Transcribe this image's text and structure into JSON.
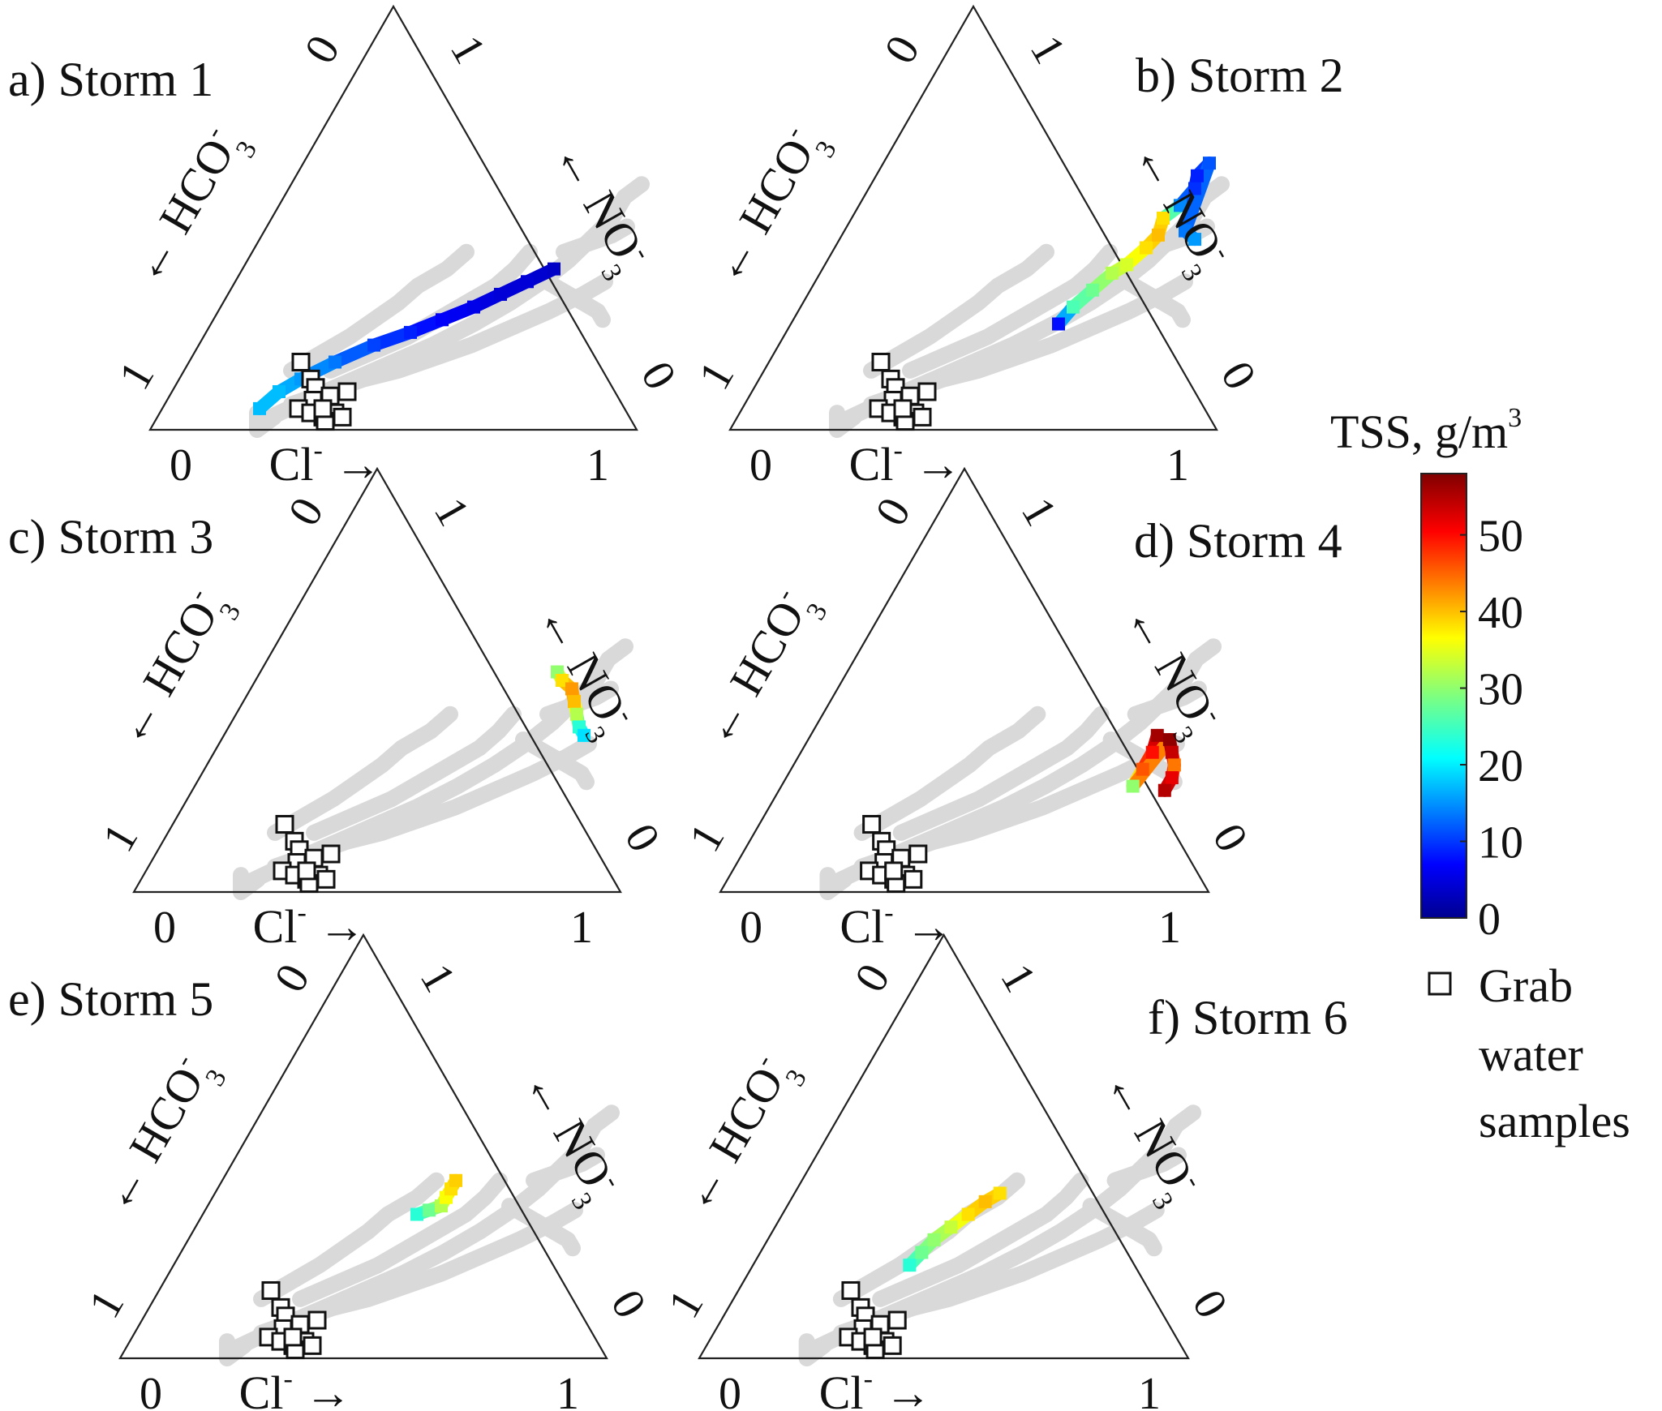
{
  "chart_data": {
    "type": "scatter",
    "subtype": "ternary",
    "axes": {
      "bottom": {
        "label_main": "Cl",
        "label_sup": "-",
        "arrow": "→",
        "ticks": [
          "0",
          "1"
        ]
      },
      "left": {
        "label_main": "HCO",
        "label_sub": "3",
        "label_sup": "-",
        "arrow": "←",
        "ticks": [
          "0",
          "1"
        ]
      },
      "right": {
        "label_main": "NO",
        "label_sub": "3",
        "label_sup": "-",
        "arrow": "←",
        "ticks": [
          "1",
          "0"
        ]
      }
    },
    "colorbar": {
      "title_main": "TSS, g/m",
      "title_sup": "3",
      "ticks": [
        "0",
        "10",
        "20",
        "30",
        "40",
        "50"
      ],
      "range": [
        0,
        58
      ],
      "colormap": "jet"
    },
    "legend": {
      "grab_label_lines": [
        "Grab",
        "water",
        "samples"
      ]
    },
    "background_color": "#d9d9d9",
    "grab_samples": [
      {
        "cl": 0.23,
        "no3": 0.16
      },
      {
        "cl": 0.27,
        "no3": 0.12
      },
      {
        "cl": 0.29,
        "no3": 0.1
      },
      {
        "cl": 0.3,
        "no3": 0.07
      },
      {
        "cl": 0.33,
        "no3": 0.08
      },
      {
        "cl": 0.36,
        "no3": 0.09
      },
      {
        "cl": 0.28,
        "no3": 0.05
      },
      {
        "cl": 0.31,
        "no3": 0.04
      },
      {
        "cl": 0.34,
        "no3": 0.03
      },
      {
        "cl": 0.36,
        "no3": 0.04
      },
      {
        "cl": 0.35,
        "no3": 0.02
      },
      {
        "cl": 0.38,
        "no3": 0.03
      },
      {
        "cl": 0.33,
        "no3": 0.05
      }
    ],
    "panels": [
      {
        "label": "a) Storm 1",
        "series": [
          {
            "cl": 0.2,
            "no3": 0.05,
            "tss": 18
          },
          {
            "cl": 0.22,
            "no3": 0.09,
            "tss": 18
          },
          {
            "cl": 0.25,
            "no3": 0.12,
            "tss": 16
          },
          {
            "cl": 0.3,
            "no3": 0.16,
            "tss": 14
          },
          {
            "cl": 0.36,
            "no3": 0.2,
            "tss": 11
          },
          {
            "cl": 0.42,
            "no3": 0.23,
            "tss": 9
          },
          {
            "cl": 0.47,
            "no3": 0.26,
            "tss": 7
          },
          {
            "cl": 0.52,
            "no3": 0.29,
            "tss": 6
          },
          {
            "cl": 0.56,
            "no3": 0.32,
            "tss": 5
          },
          {
            "cl": 0.6,
            "no3": 0.35,
            "tss": 5
          },
          {
            "cl": 0.64,
            "no3": 0.38,
            "tss": 4
          }
        ]
      },
      {
        "label": "b) Storm 2",
        "series": [
          {
            "cl": 0.55,
            "no3": 0.25,
            "tss": 8
          },
          {
            "cl": 0.56,
            "no3": 0.29,
            "tss": 26
          },
          {
            "cl": 0.58,
            "no3": 0.33,
            "tss": 28
          },
          {
            "cl": 0.6,
            "no3": 0.37,
            "tss": 32
          },
          {
            "cl": 0.62,
            "no3": 0.39,
            "tss": 34
          },
          {
            "cl": 0.64,
            "no3": 0.43,
            "tss": 38
          },
          {
            "cl": 0.65,
            "no3": 0.46,
            "tss": 40
          },
          {
            "cl": 0.64,
            "no3": 0.5,
            "tss": 38
          },
          {
            "cl": 0.66,
            "no3": 0.53,
            "tss": 15
          },
          {
            "cl": 0.67,
            "no3": 0.57,
            "tss": 10
          },
          {
            "cl": 0.66,
            "no3": 0.6,
            "tss": 9
          },
          {
            "cl": 0.67,
            "no3": 0.63,
            "tss": 12
          },
          {
            "cl": 0.7,
            "no3": 0.47,
            "tss": 14
          },
          {
            "cl": 0.73,
            "no3": 0.45,
            "tss": 16
          }
        ]
      },
      {
        "label": "c) Storm 3",
        "series": [
          {
            "cl": 0.61,
            "no3": 0.52,
            "tss": 30
          },
          {
            "cl": 0.63,
            "no3": 0.5,
            "tss": 38
          },
          {
            "cl": 0.66,
            "no3": 0.48,
            "tss": 42
          },
          {
            "cl": 0.68,
            "no3": 0.45,
            "tss": 40
          },
          {
            "cl": 0.7,
            "no3": 0.42,
            "tss": 32
          },
          {
            "cl": 0.72,
            "no3": 0.39,
            "tss": 24
          },
          {
            "cl": 0.74,
            "no3": 0.37,
            "tss": 20
          }
        ]
      },
      {
        "label": "d) Storm 4",
        "series": [
          {
            "cl": 0.71,
            "no3": 0.37,
            "tss": 56
          },
          {
            "cl": 0.72,
            "no3": 0.33,
            "tss": 50
          },
          {
            "cl": 0.72,
            "no3": 0.29,
            "tss": 46
          },
          {
            "cl": 0.72,
            "no3": 0.25,
            "tss": 30
          },
          {
            "cl": 0.74,
            "no3": 0.36,
            "tss": 57
          },
          {
            "cl": 0.76,
            "no3": 0.33,
            "tss": 54
          },
          {
            "cl": 0.78,
            "no3": 0.3,
            "tss": 44
          },
          {
            "cl": 0.79,
            "no3": 0.27,
            "tss": 52
          },
          {
            "cl": 0.79,
            "no3": 0.24,
            "tss": 55
          }
        ]
      },
      {
        "label": "e) Storm 5",
        "series": [
          {
            "cl": 0.44,
            "no3": 0.34,
            "tss": 24
          },
          {
            "cl": 0.46,
            "no3": 0.35,
            "tss": 28
          },
          {
            "cl": 0.48,
            "no3": 0.36,
            "tss": 32
          },
          {
            "cl": 0.48,
            "no3": 0.38,
            "tss": 36
          },
          {
            "cl": 0.48,
            "no3": 0.4,
            "tss": 38
          },
          {
            "cl": 0.48,
            "no3": 0.42,
            "tss": 39
          }
        ]
      },
      {
        "label": "f) Storm 6",
        "series": [
          {
            "cl": 0.32,
            "no3": 0.22,
            "tss": 24
          },
          {
            "cl": 0.33,
            "no3": 0.25,
            "tss": 28
          },
          {
            "cl": 0.34,
            "no3": 0.28,
            "tss": 30
          },
          {
            "cl": 0.36,
            "no3": 0.31,
            "tss": 33
          },
          {
            "cl": 0.38,
            "no3": 0.34,
            "tss": 38
          },
          {
            "cl": 0.4,
            "no3": 0.37,
            "tss": 40
          },
          {
            "cl": 0.42,
            "no3": 0.39,
            "tss": 38
          }
        ]
      }
    ]
  }
}
